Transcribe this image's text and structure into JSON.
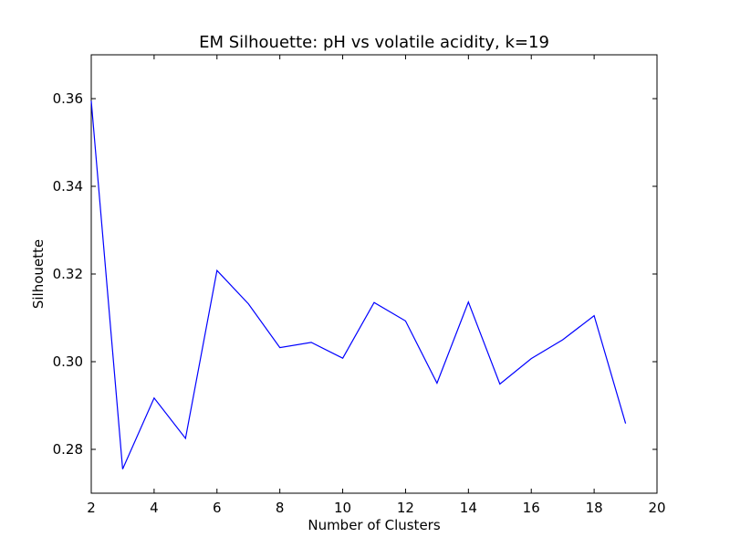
{
  "chart_data": {
    "type": "line",
    "title": "EM Silhouette: pH vs volatile acidity, k=19",
    "xlabel": "Number of Clusters",
    "ylabel": "Silhouette",
    "xlim": [
      2,
      20
    ],
    "ylim": [
      0.27,
      0.37
    ],
    "xticks": [
      2,
      4,
      6,
      8,
      10,
      12,
      14,
      16,
      18,
      20
    ],
    "xtick_labels": [
      "2",
      "4",
      "6",
      "8",
      "10",
      "12",
      "14",
      "16",
      "18",
      "20"
    ],
    "yticks": [
      0.28,
      0.3,
      0.32,
      0.34,
      0.36
    ],
    "ytick_labels": [
      "0.28",
      "0.30",
      "0.32",
      "0.34",
      "0.36"
    ],
    "grid": false,
    "legend": "none",
    "series": [
      {
        "color": "#0000ff",
        "x": [
          2,
          3,
          4,
          5,
          6,
          7,
          8,
          9,
          10,
          11,
          12,
          13,
          14,
          15,
          16,
          17,
          18,
          19
        ],
        "y": [
          0.3595,
          0.2755,
          0.2917,
          0.2825,
          0.3208,
          0.3132,
          0.3032,
          0.3044,
          0.3008,
          0.3135,
          0.3093,
          0.2951,
          0.3136,
          0.2949,
          0.3007,
          0.305,
          0.3105,
          0.2859
        ]
      }
    ]
  }
}
